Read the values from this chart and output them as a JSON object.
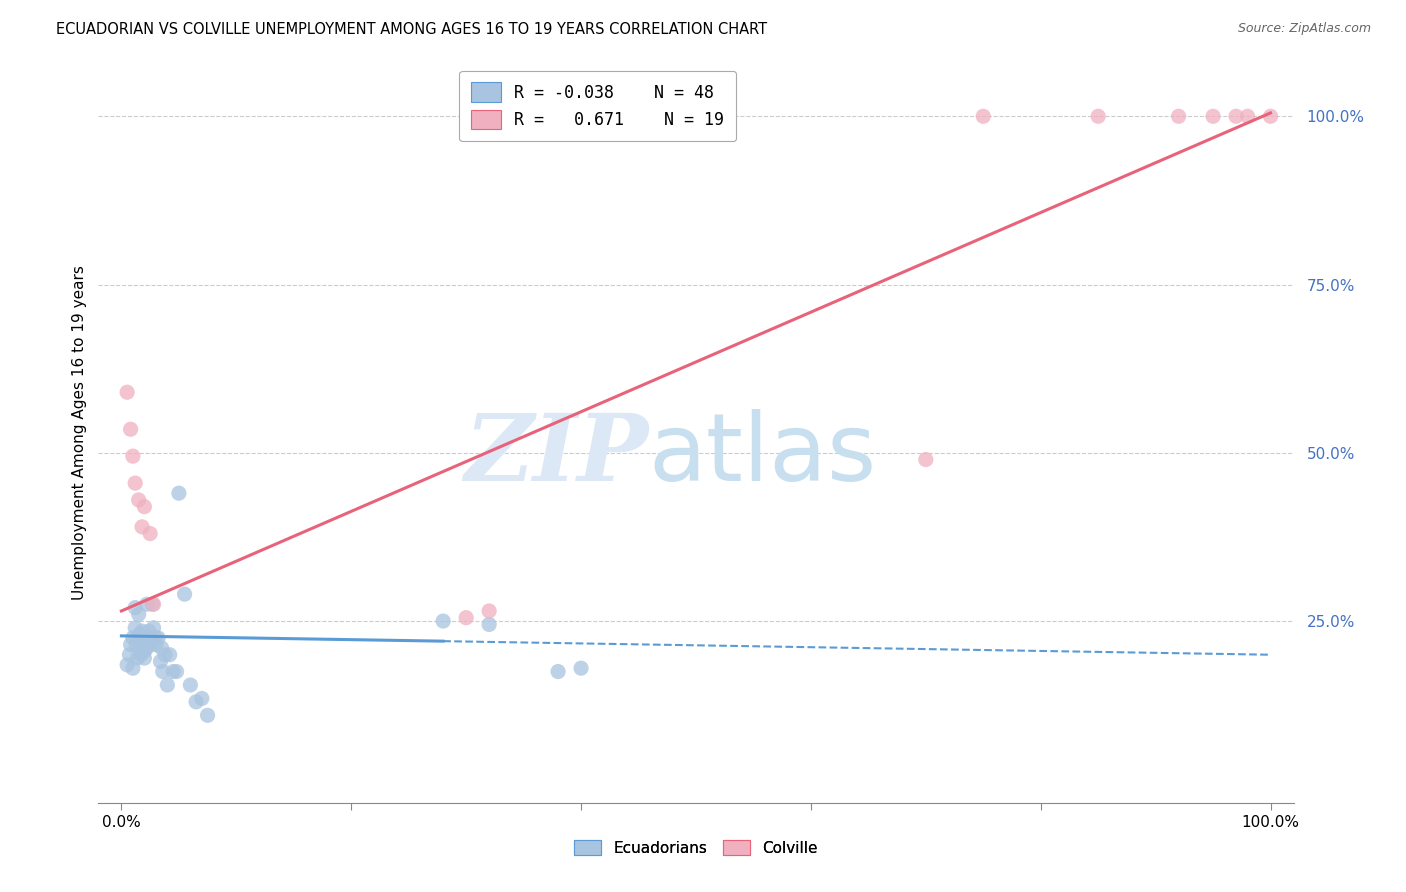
{
  "title": "ECUADORIAN VS COLVILLE UNEMPLOYMENT AMONG AGES 16 TO 19 YEARS CORRELATION CHART",
  "source": "Source: ZipAtlas.com",
  "ylabel": "Unemployment Among Ages 16 to 19 years",
  "y_tick_labels_right": [
    "25.0%",
    "50.0%",
    "75.0%",
    "100.0%"
  ],
  "y_tick_positions": [
    0.25,
    0.5,
    0.75,
    1.0
  ],
  "x_tick_positions": [
    0.0,
    0.2,
    0.4,
    0.6,
    0.8,
    1.0
  ],
  "ecuadorian_x": [
    0.005,
    0.007,
    0.008,
    0.01,
    0.01,
    0.012,
    0.012,
    0.013,
    0.014,
    0.015,
    0.015,
    0.016,
    0.017,
    0.018,
    0.018,
    0.019,
    0.02,
    0.02,
    0.021,
    0.022,
    0.022,
    0.023,
    0.024,
    0.025,
    0.026,
    0.027,
    0.028,
    0.03,
    0.03,
    0.032,
    0.034,
    0.035,
    0.036,
    0.038,
    0.04,
    0.042,
    0.045,
    0.048,
    0.05,
    0.055,
    0.06,
    0.065,
    0.07,
    0.075,
    0.28,
    0.32,
    0.38,
    0.4
  ],
  "ecuadorian_y": [
    0.185,
    0.2,
    0.215,
    0.225,
    0.18,
    0.27,
    0.24,
    0.215,
    0.195,
    0.26,
    0.22,
    0.23,
    0.2,
    0.235,
    0.215,
    0.225,
    0.205,
    0.195,
    0.225,
    0.21,
    0.275,
    0.22,
    0.235,
    0.215,
    0.225,
    0.275,
    0.24,
    0.225,
    0.215,
    0.225,
    0.19,
    0.21,
    0.175,
    0.2,
    0.155,
    0.2,
    0.175,
    0.175,
    0.44,
    0.29,
    0.155,
    0.13,
    0.135,
    0.11,
    0.25,
    0.245,
    0.175,
    0.18
  ],
  "colville_x": [
    0.005,
    0.008,
    0.01,
    0.012,
    0.015,
    0.018,
    0.02,
    0.025,
    0.028,
    0.3,
    0.32,
    0.7,
    0.75,
    0.85,
    0.92,
    0.95,
    0.97,
    0.98,
    1.0
  ],
  "colville_y": [
    0.59,
    0.535,
    0.495,
    0.455,
    0.43,
    0.39,
    0.42,
    0.38,
    0.275,
    0.255,
    0.265,
    0.49,
    1.0,
    1.0,
    1.0,
    1.0,
    1.0,
    1.0,
    1.0
  ],
  "blue_color": "#5b9bd5",
  "pink_color": "#e8637a",
  "blue_fill": "#a8c4e0",
  "pink_fill": "#f0b0c0",
  "background_color": "#ffffff",
  "watermark_zip": "ZIP",
  "watermark_atlas": "atlas",
  "watermark_color": "#dce8f5",
  "ecu_line_start_x": 0.0,
  "ecu_line_end_solid_x": 0.28,
  "ecu_line_intercept": 0.228,
  "ecu_line_slope": -0.028,
  "col_line_intercept": 0.265,
  "col_line_slope": 0.74,
  "legend_R_ecu": "-0.038",
  "legend_N_ecu": "48",
  "legend_R_col": "0.671",
  "legend_N_col": "19"
}
